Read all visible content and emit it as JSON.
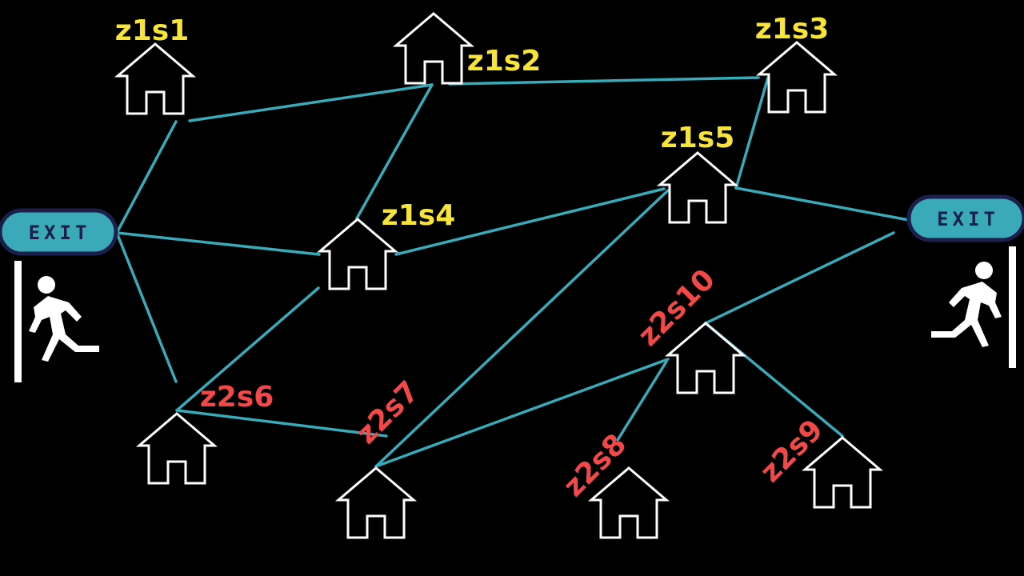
{
  "colors": {
    "background": "#000000",
    "edge": "#3aa9b8",
    "zone1_label": "#f7e43b",
    "zone2_label": "#f24848",
    "exit_sign_fill": "#3aa9b8",
    "exit_sign_border": "#1c1f4a",
    "exit_sign_text": "#1c1f4a",
    "house_outline": "#ffffff",
    "running_figure": "#ffffff"
  },
  "exits": [
    {
      "id": "exit-left",
      "label": "EXIT",
      "icon": "running-person-icon"
    },
    {
      "id": "exit-right",
      "label": "EXIT",
      "icon": "running-person-icon"
    }
  ],
  "nodes": [
    {
      "id": "z1s1",
      "label": "z1s1",
      "zone": 1,
      "icon": "house-icon"
    },
    {
      "id": "z1s2",
      "label": "z1s2",
      "zone": 1,
      "icon": "house-icon"
    },
    {
      "id": "z1s3",
      "label": "z1s3",
      "zone": 1,
      "icon": "house-icon"
    },
    {
      "id": "z1s4",
      "label": "z1s4",
      "zone": 1,
      "icon": "house-icon"
    },
    {
      "id": "z1s5",
      "label": "z1s5",
      "zone": 1,
      "icon": "house-icon"
    },
    {
      "id": "z2s6",
      "label": "z2s6",
      "zone": 2,
      "icon": "house-icon"
    },
    {
      "id": "z2s7",
      "label": "z2s7",
      "zone": 2,
      "icon": "house-icon"
    },
    {
      "id": "z2s8",
      "label": "z2s8",
      "zone": 2,
      "icon": "house-icon"
    },
    {
      "id": "z2s9",
      "label": "z2s9",
      "zone": 2,
      "icon": "house-icon"
    },
    {
      "id": "z2s10",
      "label": "z2s10",
      "zone": 2,
      "icon": "house-icon"
    }
  ],
  "edges": [
    [
      "exit-left",
      "z1s1"
    ],
    [
      "exit-left",
      "z1s4"
    ],
    [
      "exit-left",
      "z2s6"
    ],
    [
      "z1s1",
      "z1s2"
    ],
    [
      "z1s2",
      "z1s3"
    ],
    [
      "z1s2",
      "z1s4"
    ],
    [
      "z1s3",
      "z1s5"
    ],
    [
      "z1s4",
      "z1s5"
    ],
    [
      "z1s4",
      "z2s6"
    ],
    [
      "z1s5",
      "exit-right"
    ],
    [
      "z1s5",
      "z2s7"
    ],
    [
      "z2s6",
      "z2s7"
    ],
    [
      "z2s7",
      "z2s10"
    ],
    [
      "z2s10",
      "exit-right"
    ],
    [
      "z2s10",
      "z2s8"
    ],
    [
      "z2s10",
      "z2s9"
    ]
  ]
}
